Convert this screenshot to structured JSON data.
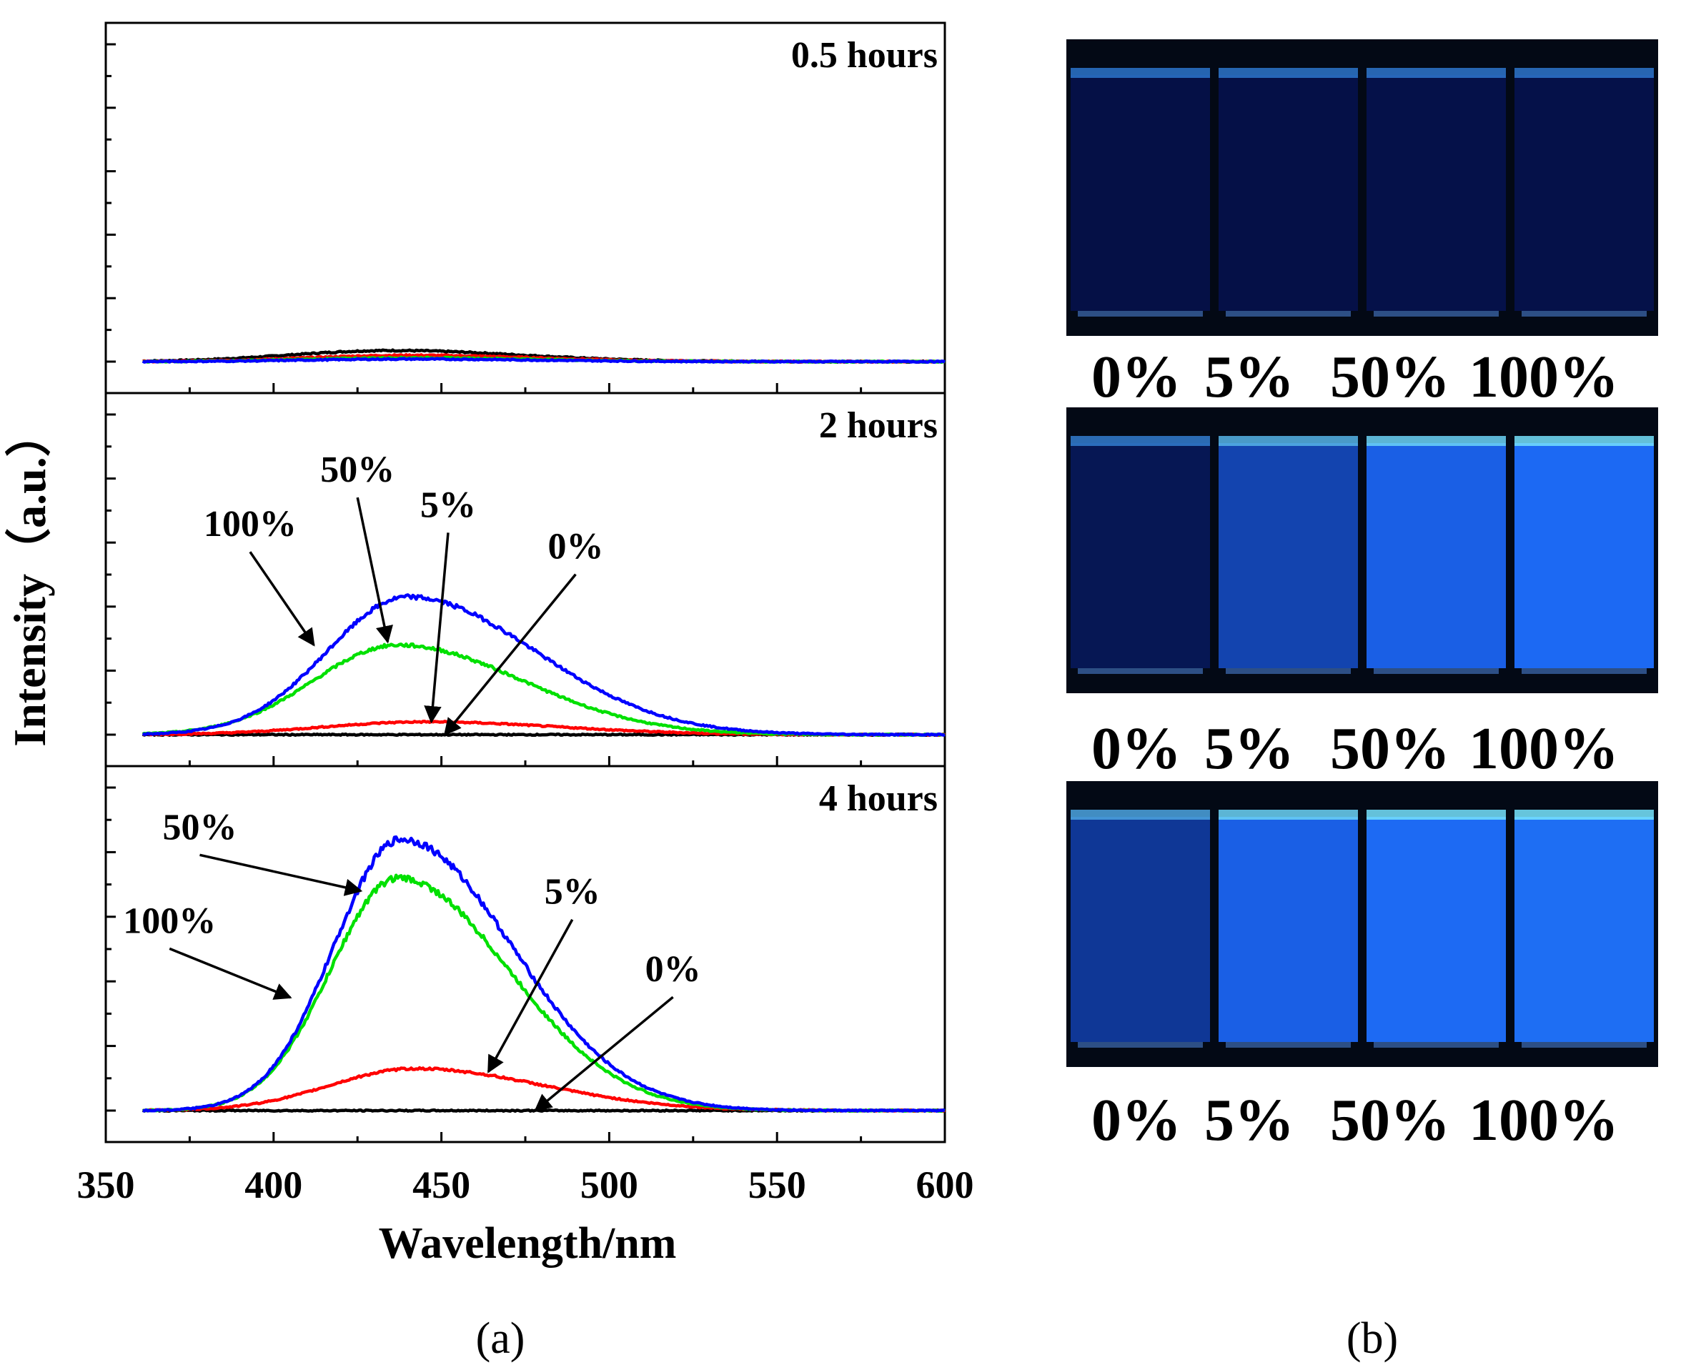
{
  "chart_data": {
    "type": "line",
    "panel_label": "(a)",
    "xlabel": "Wavelength/nm",
    "ylabel": "Intensity（a.u.）",
    "xlim": [
      350,
      600
    ],
    "xticks": [
      350,
      400,
      450,
      500,
      550,
      600
    ],
    "ylim": [
      0,
      1.05
    ],
    "yticks_labeled": false,
    "grid": false,
    "series_colors": {
      "0%": "#000000",
      "5%": "#ff0000",
      "50%": "#00e000",
      "100%": "#0000ff"
    },
    "panels": [
      {
        "title": "0.5 hours",
        "series": [
          {
            "name": "0%",
            "color": "#000000",
            "peak_x": 435,
            "peak": 0.035,
            "sigma_left": 30,
            "sigma_right": 38
          },
          {
            "name": "5%",
            "color": "#ff0000",
            "peak_x": 440,
            "peak": 0.02,
            "sigma_left": 30,
            "sigma_right": 38
          },
          {
            "name": "50%",
            "color": "#00e000",
            "peak_x": 440,
            "peak": 0.012,
            "sigma_left": 30,
            "sigma_right": 38
          },
          {
            "name": "100%",
            "color": "#0000ff",
            "peak_x": 440,
            "peak": 0.008,
            "sigma_left": 30,
            "sigma_right": 38
          }
        ],
        "annotations": []
      },
      {
        "title": "2 hours",
        "series": [
          {
            "name": "0%",
            "color": "#000000",
            "peak_x": 440,
            "peak": 0.0,
            "sigma_left": 28,
            "sigma_right": 40
          },
          {
            "name": "5%",
            "color": "#ff0000",
            "peak_x": 445,
            "peak": 0.04,
            "sigma_left": 30,
            "sigma_right": 40
          },
          {
            "name": "50%",
            "color": "#00e000",
            "peak_x": 437,
            "peak": 0.28,
            "sigma_left": 25,
            "sigma_right": 37
          },
          {
            "name": "100%",
            "color": "#0000ff",
            "peak_x": 440,
            "peak": 0.43,
            "sigma_left": 24,
            "sigma_right": 38
          }
        ],
        "annotations": [
          {
            "text": "100%",
            "x": 393,
            "y": 0.62,
            "arrow_to_x": 412,
            "arrow_to_y": 0.28
          },
          {
            "text": "50%",
            "x": 425,
            "y": 0.79,
            "arrow_to_x": 434,
            "arrow_to_y": 0.29
          },
          {
            "text": "5%",
            "x": 452,
            "y": 0.68,
            "arrow_to_x": 447,
            "arrow_to_y": 0.04
          },
          {
            "text": "0%",
            "x": 490,
            "y": 0.55,
            "arrow_to_x": 451,
            "arrow_to_y": 0.0
          }
        ]
      },
      {
        "title": "4 hours",
        "series": [
          {
            "name": "0%",
            "color": "#000000",
            "peak_x": 440,
            "peak": 0.0,
            "sigma_left": 28,
            "sigma_right": 40
          },
          {
            "name": "5%",
            "color": "#ff0000",
            "peak_x": 442,
            "peak": 0.13,
            "sigma_left": 25,
            "sigma_right": 38
          },
          {
            "name": "50%",
            "color": "#00e000",
            "peak_x": 437,
            "peak": 0.72,
            "sigma_left": 20,
            "sigma_right": 33
          },
          {
            "name": "100%",
            "color": "#0000ff",
            "peak_x": 438,
            "peak": 0.84,
            "sigma_left": 20,
            "sigma_right": 33
          }
        ],
        "annotations": [
          {
            "text": "50%",
            "x": 378,
            "y": 0.84,
            "arrow_to_x": 426,
            "arrow_to_y": 0.68
          },
          {
            "text": "100%",
            "x": 369,
            "y": 0.55,
            "arrow_to_x": 405,
            "arrow_to_y": 0.35
          },
          {
            "text": "5%",
            "x": 489,
            "y": 0.64,
            "arrow_to_x": 464,
            "arrow_to_y": 0.12
          },
          {
            "text": "0%",
            "x": 519,
            "y": 0.4,
            "arrow_to_x": 478,
            "arrow_to_y": 0.0
          }
        ]
      }
    ]
  },
  "photos": {
    "panel_label": "(b)",
    "rows": [
      {
        "title": "0.5 hours",
        "labels": [
          "0%",
          "5%",
          "50%",
          "100%"
        ],
        "glow": [
          0.05,
          0.06,
          0.07,
          0.07
        ]
      },
      {
        "title": "2 hours",
        "labels": [
          "0%",
          "5%",
          "50%",
          "100%"
        ],
        "glow": [
          0.12,
          0.58,
          0.85,
          0.95
        ]
      },
      {
        "title": "4 hours",
        "labels": [
          "0%",
          "5%",
          "50%",
          "100%"
        ],
        "glow": [
          0.45,
          0.85,
          0.97,
          1.0
        ]
      }
    ]
  }
}
